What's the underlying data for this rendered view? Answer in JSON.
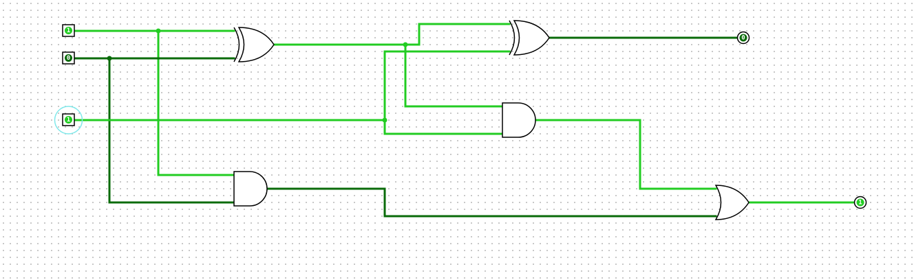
{
  "colors": {
    "high": "#22cc22",
    "low": "#0a6b0a",
    "gate_stroke": "#000000",
    "selection": "#7fe8ea"
  },
  "inputs": [
    {
      "id": "in-a",
      "value": "1",
      "state": "high",
      "selected": false
    },
    {
      "id": "in-b",
      "value": "0",
      "state": "low",
      "selected": false
    },
    {
      "id": "in-c",
      "value": "1",
      "state": "high",
      "selected": true
    }
  ],
  "outputs": [
    {
      "id": "out-sum",
      "value": "0",
      "state": "low"
    },
    {
      "id": "out-carry",
      "value": "1",
      "state": "high"
    }
  ],
  "gates": [
    {
      "id": "xor-1",
      "kind": "xor"
    },
    {
      "id": "xor-2",
      "kind": "xor"
    },
    {
      "id": "and-1",
      "kind": "and"
    },
    {
      "id": "and-2",
      "kind": "and"
    },
    {
      "id": "or-1",
      "kind": "or"
    }
  ]
}
